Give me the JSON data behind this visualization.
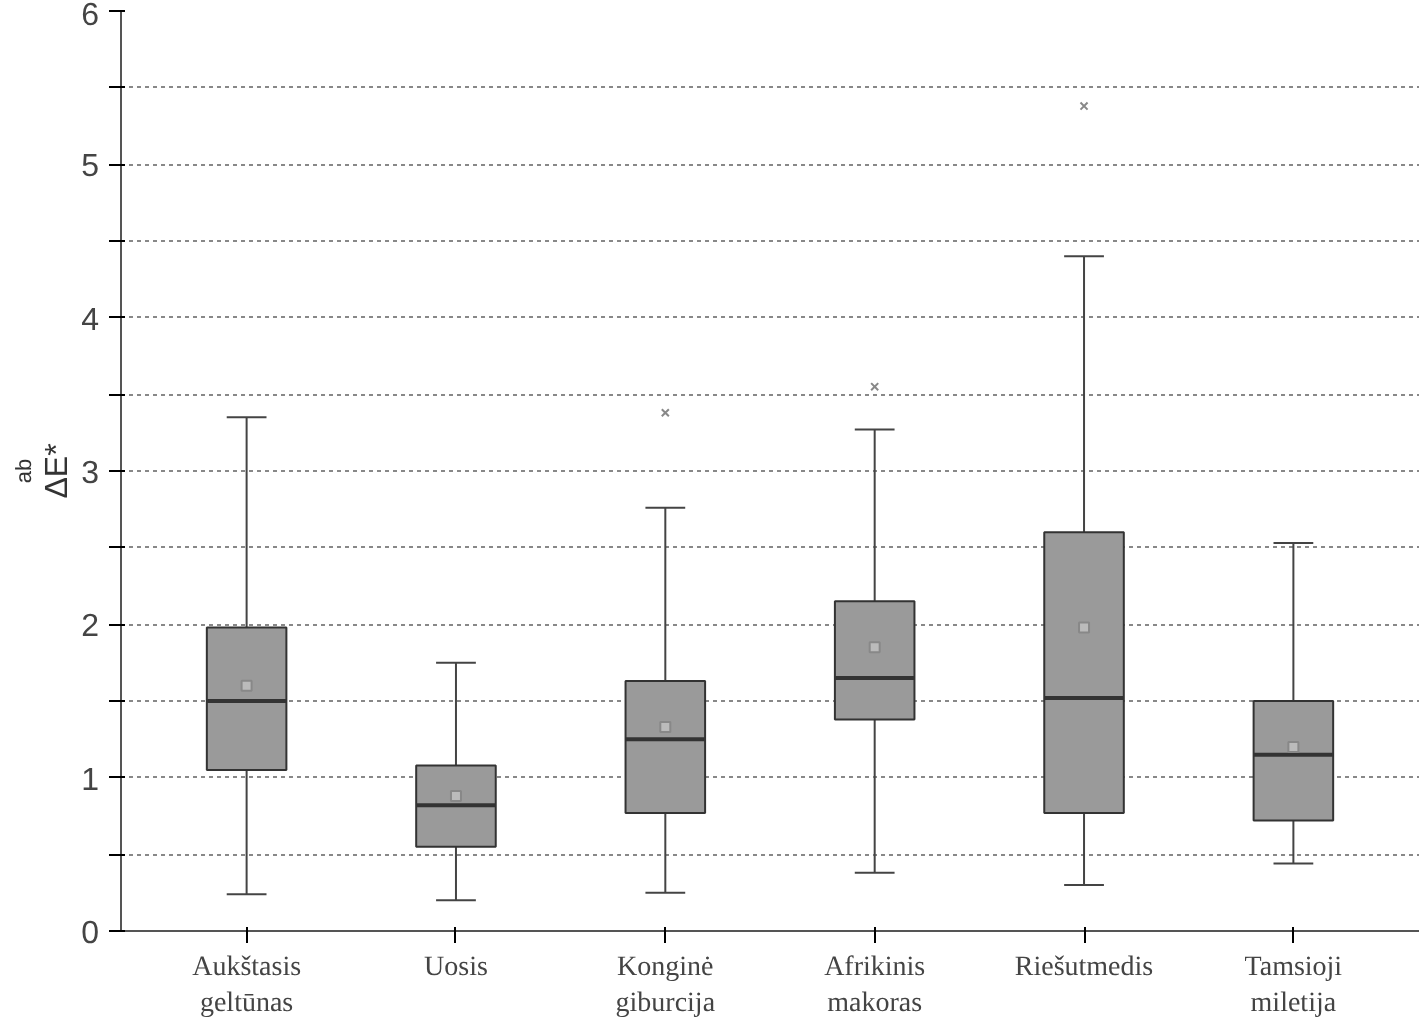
{
  "chart_data": {
    "type": "box",
    "ylabel": "ΔE*$_{ab}$",
    "categories": [
      "Aukštasis\ngeltūnas",
      "Uosis",
      "Konginė\ngiburcija",
      "Afrikinis\nmakoras",
      "Riešutmedis",
      "Tamsioji\nmiletija"
    ],
    "boxes": [
      {
        "low": 0.24,
        "q1": 1.05,
        "median": 1.5,
        "q3": 1.98,
        "high": 3.35,
        "mean": 1.6
      },
      {
        "low": 0.2,
        "q1": 0.55,
        "median": 0.82,
        "q3": 1.08,
        "high": 1.75,
        "mean": 0.88
      },
      {
        "low": 0.25,
        "q1": 0.77,
        "median": 1.25,
        "q3": 1.63,
        "high": 2.76,
        "mean": 1.33,
        "outliers": [
          3.38
        ]
      },
      {
        "low": 0.38,
        "q1": 1.38,
        "median": 1.65,
        "q3": 2.15,
        "high": 3.27,
        "mean": 1.85,
        "outliers": [
          3.55
        ]
      },
      {
        "low": 0.3,
        "q1": 0.77,
        "median": 1.52,
        "q3": 2.6,
        "high": 4.4,
        "mean": 1.98,
        "outliers": [
          5.38
        ]
      },
      {
        "low": 0.44,
        "q1": 0.72,
        "median": 1.15,
        "q3": 1.5,
        "high": 2.53,
        "mean": 1.2
      }
    ],
    "color": "#9a9a9a",
    "ylim": [
      0,
      6
    ],
    "yticks": [
      0,
      {
        "value": 0.5,
        "label": null
      },
      1,
      {
        "value": 1.5,
        "label": null
      },
      2,
      {
        "value": 2.5,
        "label": null
      },
      3,
      {
        "value": 3.5,
        "label": null
      },
      4,
      {
        "value": 4.5,
        "label": null
      },
      5,
      {
        "value": 5.5,
        "label": null
      },
      6
    ],
    "grid": "y"
  }
}
